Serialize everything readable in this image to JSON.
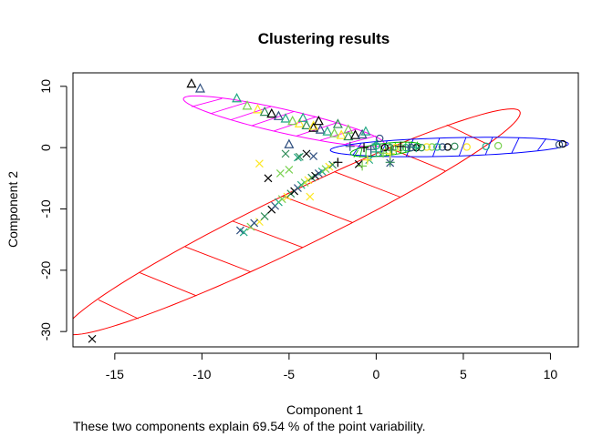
{
  "chart_data": {
    "type": "scatter",
    "title": "Clustering results",
    "xlabel": "Component 1",
    "ylabel": "Component 2",
    "subtitle": "These two components explain 69.54 % of the point variability.",
    "xlim": [
      -17.4,
      11.6
    ],
    "ylim": [
      -32.5,
      12.2
    ],
    "x_ticks": [
      -15,
      -10,
      -5,
      0,
      5,
      10
    ],
    "y_ticks": [
      -30,
      -20,
      -10,
      0,
      10
    ],
    "grid": false,
    "colors": {
      "ellipse_cross": "#ff0000",
      "ellipse_triangle": "#ff00ff",
      "ellipse_circle": "#0000ff",
      "ellipse_plus": "#00bb00",
      "point_palette": [
        "#000000",
        "#2f4f7f",
        "#22a884",
        "#7ad151",
        "#fde725",
        "#2e8b57"
      ]
    },
    "clusters": [
      {
        "symbol": "cross",
        "ellipse": {
          "color": "#ff0000",
          "center": [
            -4.8,
            -12.1
          ],
          "semi_major": 22.4,
          "semi_minor": 2.9,
          "angle_deg": 55.0
        },
        "points": [
          [
            -16.3,
            -31.2
          ],
          [
            -7.8,
            -13.5
          ],
          [
            -7.6,
            -13.8
          ],
          [
            -7.2,
            -12.9
          ],
          [
            -6.7,
            -12.1
          ],
          [
            -6.4,
            -11.2
          ],
          [
            -6.0,
            -10.1
          ],
          [
            -5.8,
            -9.5
          ],
          [
            -5.6,
            -8.9
          ],
          [
            -5.4,
            -8.4
          ],
          [
            -5.1,
            -8.0
          ],
          [
            -4.9,
            -7.5
          ],
          [
            -4.7,
            -7.1
          ],
          [
            -4.5,
            -6.6
          ],
          [
            -4.3,
            -6.1
          ],
          [
            -4.1,
            -5.7
          ],
          [
            -3.9,
            -5.3
          ],
          [
            -3.7,
            -4.9
          ],
          [
            -3.5,
            -4.6
          ],
          [
            -3.3,
            -4.2
          ],
          [
            -3.1,
            -3.9
          ],
          [
            -2.9,
            -3.5
          ],
          [
            -2.7,
            -3.1
          ],
          [
            -2.5,
            -2.8
          ],
          [
            -4.0,
            -1.0
          ],
          [
            -3.6,
            -1.4
          ],
          [
            -4.5,
            -1.6
          ],
          [
            -5.5,
            -4.2
          ],
          [
            -6.7,
            -2.6
          ],
          [
            -5.2,
            -1.0
          ],
          [
            -1.0,
            -2.7
          ],
          [
            0.8,
            -2.5
          ],
          [
            -0.4,
            -2.0
          ],
          [
            -5.0,
            -3.6
          ],
          [
            -3.8,
            -8.0
          ],
          [
            -4.4,
            -1.5
          ],
          [
            -6.2,
            -5.0
          ],
          [
            -7.0,
            -12.3
          ]
        ]
      },
      {
        "symbol": "triangle",
        "ellipse": {
          "color": "#ff00ff",
          "center": [
            -5.3,
            4.3
          ],
          "semi_major": 6.9,
          "semi_minor": 1.65,
          "angle_deg": -34.5
        },
        "points": [
          [
            -10.6,
            10.4
          ],
          [
            -10.1,
            9.6
          ],
          [
            -8.0,
            8.0
          ],
          [
            -7.4,
            6.8
          ],
          [
            -6.8,
            6.2
          ],
          [
            -6.4,
            5.8
          ],
          [
            -6.0,
            5.5
          ],
          [
            -5.6,
            5.1
          ],
          [
            -5.2,
            4.7
          ],
          [
            -4.8,
            4.3
          ],
          [
            -4.4,
            3.9
          ],
          [
            -4.0,
            3.6
          ],
          [
            -3.6,
            3.2
          ],
          [
            -3.2,
            2.9
          ],
          [
            -2.8,
            2.6
          ],
          [
            -2.4,
            2.3
          ],
          [
            -2.0,
            2.0
          ],
          [
            -1.6,
            1.8
          ],
          [
            -1.2,
            2.0
          ],
          [
            -0.8,
            2.1
          ],
          [
            -0.6,
            2.6
          ],
          [
            -1.6,
            2.9
          ],
          [
            -3.6,
            3.5
          ],
          [
            -2.2,
            3.8
          ],
          [
            -3.3,
            4.3
          ],
          [
            -5.0,
            0.5
          ],
          [
            -4.2,
            4.8
          ]
        ]
      },
      {
        "symbol": "circle",
        "ellipse": {
          "color": "#0000ff",
          "center": [
            4.2,
            0.1
          ],
          "semi_major": 6.85,
          "semi_minor": 1.5,
          "angle_deg": 4.5
        },
        "points": [
          [
            10.7,
            0.6
          ],
          [
            10.5,
            0.5
          ],
          [
            6.3,
            0.2
          ],
          [
            7.0,
            0.3
          ],
          [
            5.2,
            0.1
          ],
          [
            4.5,
            0.2
          ],
          [
            4.1,
            0.1
          ],
          [
            3.8,
            0.1
          ],
          [
            3.5,
            0.1
          ],
          [
            3.2,
            0.1
          ],
          [
            2.9,
            0.1
          ],
          [
            2.6,
            0.0
          ],
          [
            2.3,
            0.0
          ],
          [
            2.0,
            0.0
          ],
          [
            1.7,
            0.0
          ],
          [
            1.4,
            0.0
          ],
          [
            1.1,
            0.0
          ],
          [
            0.8,
            0.0
          ],
          [
            0.5,
            0.0
          ],
          [
            0.2,
            1.5
          ],
          [
            0.0,
            0.3
          ]
        ]
      },
      {
        "symbol": "plus",
        "ellipse": {
          "color": "#00bb00",
          "center": [
            0.55,
            -0.3
          ],
          "semi_major": 2.15,
          "semi_minor": 0.95,
          "angle_deg": 22.0
        },
        "points": [
          [
            -0.7,
            0.0
          ],
          [
            -0.3,
            -0.3
          ],
          [
            0.0,
            -0.7
          ],
          [
            0.4,
            -0.9
          ],
          [
            0.8,
            -1.0
          ],
          [
            0.9,
            -0.4
          ],
          [
            1.4,
            0.2
          ],
          [
            1.9,
            0.1
          ],
          [
            2.3,
            0.0
          ],
          [
            -0.8,
            -3.0
          ],
          [
            -0.5,
            -2.0
          ],
          [
            0.8,
            -2.4
          ],
          [
            -2.2,
            -2.4
          ],
          [
            -1.5,
            0.2
          ],
          [
            0.0,
            0.6
          ]
        ]
      }
    ]
  }
}
